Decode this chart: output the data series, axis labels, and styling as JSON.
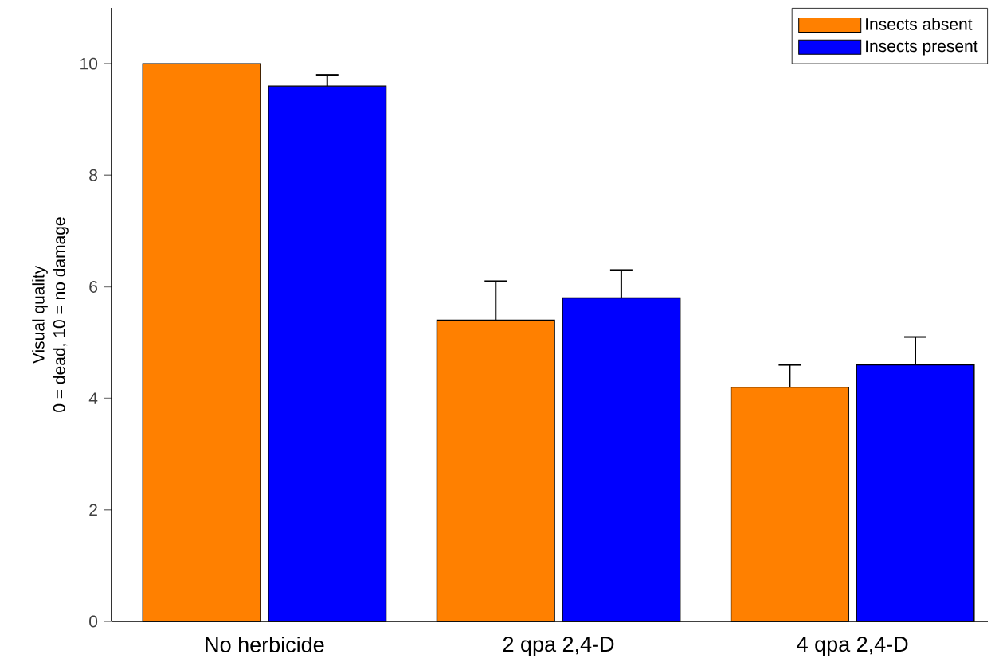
{
  "chart_data": {
    "type": "bar",
    "ylabel": "Visual quality\n0 = dead, 10 = no damage",
    "categories": [
      "No herbicide",
      "2 qpa 2,4-D",
      "4 qpa 2,4-D"
    ],
    "series": [
      {
        "name": "Insects absent",
        "color": "#ff8000",
        "values": [
          10,
          5.4,
          4.2
        ],
        "errors": [
          null,
          [
            5.4,
            6.1
          ],
          [
            4.2,
            4.6
          ]
        ]
      },
      {
        "name": "Insects present",
        "color": "#0000ff",
        "values": [
          9.6,
          5.8,
          4.6
        ],
        "errors": [
          [
            9.6,
            9.8
          ],
          [
            5.8,
            6.3
          ],
          [
            4.6,
            5.1
          ]
        ]
      }
    ],
    "ylim": [
      0,
      11
    ],
    "yticks": [
      0,
      2,
      4,
      6,
      8,
      10
    ],
    "legend": "top right",
    "grid": false
  }
}
